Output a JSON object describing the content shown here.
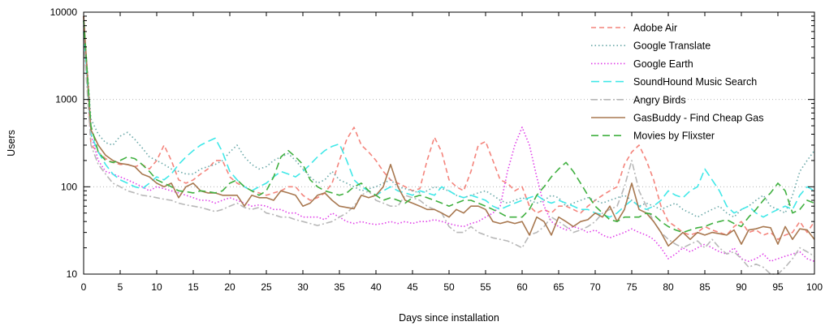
{
  "chart_data": {
    "type": "line",
    "title": "",
    "xlabel": "Days since installation",
    "ylabel": "Users",
    "xlim": [
      0,
      100
    ],
    "ylim": [
      10,
      10000
    ],
    "yscale": "log",
    "x_ticks": [
      0,
      5,
      10,
      15,
      20,
      25,
      30,
      35,
      40,
      45,
      50,
      55,
      60,
      65,
      70,
      75,
      80,
      85,
      90,
      95,
      100
    ],
    "y_ticks": [
      10,
      100,
      1000,
      10000
    ],
    "y_tick_labels": [
      "10",
      "100",
      "1000",
      "10000"
    ],
    "grid": "horizontal dotted at major y ticks",
    "legend_position": "top-right",
    "x": [
      0,
      1,
      2,
      3,
      4,
      5,
      6,
      7,
      8,
      9,
      10,
      11,
      12,
      13,
      14,
      15,
      16,
      17,
      18,
      19,
      20,
      21,
      22,
      23,
      24,
      25,
      26,
      27,
      28,
      29,
      30,
      31,
      32,
      33,
      34,
      35,
      36,
      37,
      38,
      39,
      40,
      41,
      42,
      43,
      44,
      45,
      46,
      47,
      48,
      49,
      50,
      51,
      52,
      53,
      54,
      55,
      56,
      57,
      58,
      59,
      60,
      61,
      62,
      63,
      64,
      65,
      66,
      67,
      68,
      69,
      70,
      71,
      72,
      73,
      74,
      75,
      76,
      77,
      78,
      79,
      80,
      81,
      82,
      83,
      84,
      85,
      86,
      87,
      88,
      89,
      90,
      91,
      92,
      93,
      94,
      95,
      96,
      97,
      98,
      99,
      100
    ],
    "series": [
      {
        "name": "Adobe Air",
        "color": "#f4847c",
        "dash": "6,4",
        "values": [
          9000,
          300,
          250,
          210,
          190,
          180,
          180,
          170,
          180,
          160,
          200,
          300,
          200,
          120,
          110,
          120,
          140,
          160,
          200,
          200,
          130,
          110,
          100,
          90,
          85,
          80,
          85,
          90,
          100,
          100,
          80,
          70,
          75,
          85,
          110,
          200,
          350,
          480,
          300,
          250,
          200,
          150,
          120,
          110,
          100,
          90,
          95,
          200,
          370,
          250,
          120,
          100,
          90,
          150,
          300,
          330,
          200,
          120,
          110,
          90,
          100,
          60,
          50,
          55,
          50,
          60,
          60,
          55,
          50,
          60,
          70,
          80,
          90,
          100,
          180,
          250,
          300,
          200,
          120,
          60,
          40,
          35,
          30,
          28,
          30,
          35,
          32,
          30,
          28,
          35,
          40,
          30,
          32,
          28,
          30,
          25,
          28,
          30,
          40,
          30,
          40
        ]
      },
      {
        "name": "Google Translate",
        "color": "#6aa8a8",
        "dash": "1.5,3",
        "values": [
          8000,
          600,
          400,
          320,
          300,
          380,
          420,
          350,
          280,
          220,
          200,
          180,
          160,
          150,
          140,
          140,
          160,
          170,
          180,
          200,
          250,
          300,
          220,
          180,
          160,
          170,
          200,
          220,
          240,
          200,
          160,
          130,
          110,
          120,
          150,
          120,
          110,
          100,
          90,
          95,
          100,
          110,
          120,
          100,
          95,
          90,
          85,
          90,
          100,
          95,
          90,
          80,
          75,
          80,
          85,
          90,
          80,
          70,
          65,
          70,
          75,
          70,
          65,
          70,
          80,
          75,
          60,
          65,
          70,
          75,
          70,
          65,
          70,
          75,
          80,
          70,
          60,
          65,
          60,
          55,
          60,
          65,
          55,
          50,
          45,
          50,
          55,
          60,
          50,
          45,
          55,
          60,
          70,
          80,
          60,
          55,
          50,
          80,
          150,
          200,
          260
        ]
      },
      {
        "name": "Google Earth",
        "color": "#e040e8",
        "dash": "1.5,2.5",
        "values": [
          7000,
          400,
          200,
          150,
          140,
          130,
          120,
          110,
          100,
          90,
          100,
          95,
          90,
          85,
          80,
          75,
          70,
          70,
          65,
          70,
          75,
          70,
          65,
          60,
          62,
          60,
          55,
          55,
          50,
          50,
          45,
          45,
          45,
          42,
          50,
          45,
          40,
          38,
          40,
          38,
          37,
          38,
          40,
          38,
          40,
          38,
          40,
          40,
          42,
          40,
          38,
          36,
          35,
          38,
          40,
          45,
          50,
          60,
          150,
          300,
          480,
          300,
          130,
          60,
          40,
          35,
          32,
          35,
          33,
          30,
          32,
          28,
          26,
          28,
          30,
          33,
          30,
          28,
          25,
          20,
          15,
          17,
          20,
          18,
          20,
          22,
          20,
          18,
          17,
          20,
          15,
          14,
          15,
          17,
          14,
          15,
          16,
          17,
          18,
          15,
          14
        ]
      },
      {
        "name": "SoundHound Music Search",
        "color": "#40e8e8",
        "dash": "10,5",
        "values": [
          6000,
          400,
          250,
          180,
          140,
          120,
          110,
          100,
          95,
          110,
          130,
          120,
          140,
          180,
          220,
          260,
          300,
          330,
          360,
          250,
          150,
          120,
          100,
          90,
          100,
          110,
          130,
          150,
          140,
          130,
          150,
          180,
          220,
          260,
          290,
          310,
          200,
          120,
          100,
          90,
          80,
          90,
          100,
          90,
          85,
          80,
          90,
          85,
          80,
          100,
          90,
          80,
          75,
          80,
          75,
          70,
          60,
          55,
          60,
          65,
          70,
          75,
          80,
          70,
          65,
          70,
          65,
          60,
          55,
          55,
          50,
          48,
          45,
          50,
          60,
          70,
          60,
          55,
          60,
          70,
          90,
          80,
          75,
          90,
          100,
          160,
          120,
          90,
          60,
          50,
          55,
          60,
          50,
          45,
          50,
          55,
          60,
          55,
          80,
          100,
          90
        ]
      },
      {
        "name": "Angry Birds",
        "color": "#b8b8b8",
        "dash": "8,3,2,3",
        "values": [
          5000,
          300,
          180,
          140,
          110,
          100,
          90,
          85,
          80,
          78,
          75,
          72,
          70,
          65,
          62,
          60,
          58,
          55,
          52,
          55,
          60,
          65,
          58,
          55,
          58,
          50,
          48,
          45,
          45,
          42,
          40,
          38,
          36,
          38,
          40,
          45,
          50,
          60,
          80,
          90,
          70,
          65,
          60,
          60,
          80,
          75,
          70,
          60,
          55,
          50,
          35,
          30,
          30,
          35,
          30,
          28,
          26,
          25,
          24,
          22,
          20,
          28,
          30,
          35,
          45,
          40,
          35,
          30,
          32,
          35,
          40,
          50,
          55,
          60,
          100,
          200,
          90,
          60,
          40,
          30,
          25,
          22,
          20,
          22,
          24,
          20,
          25,
          20,
          17,
          18,
          15,
          12,
          13,
          12,
          10,
          10,
          12,
          15,
          20,
          18,
          16
        ]
      },
      {
        "name": "GasBuddy - Find Cheap Gas",
        "color": "#a87850",
        "dash": "",
        "values": [
          9000,
          450,
          300,
          230,
          200,
          185,
          180,
          170,
          140,
          130,
          110,
          100,
          110,
          75,
          100,
          110,
          90,
          85,
          85,
          80,
          80,
          80,
          60,
          80,
          75,
          75,
          70,
          90,
          85,
          80,
          60,
          65,
          80,
          85,
          70,
          60,
          58,
          56,
          80,
          75,
          80,
          100,
          180,
          100,
          70,
          65,
          60,
          55,
          55,
          50,
          45,
          55,
          50,
          60,
          60,
          55,
          40,
          38,
          40,
          38,
          40,
          28,
          45,
          40,
          28,
          45,
          40,
          35,
          40,
          42,
          50,
          45,
          60,
          40,
          55,
          110,
          55,
          50,
          40,
          30,
          21,
          25,
          30,
          25,
          30,
          28,
          30,
          29,
          28,
          32,
          22,
          32,
          33,
          35,
          34,
          22,
          35,
          25,
          33,
          32,
          25
        ]
      },
      {
        "name": "Movies by Flixster",
        "color": "#40b040",
        "dash": "9,5",
        "values": [
          8000,
          500,
          250,
          200,
          190,
          200,
          220,
          210,
          180,
          150,
          120,
          110,
          100,
          90,
          88,
          85,
          90,
          88,
          85,
          90,
          110,
          120,
          100,
          90,
          80,
          90,
          130,
          220,
          260,
          220,
          180,
          120,
          100,
          90,
          85,
          80,
          85,
          100,
          110,
          90,
          80,
          70,
          75,
          70,
          65,
          75,
          80,
          75,
          70,
          65,
          60,
          65,
          70,
          70,
          65,
          60,
          55,
          50,
          45,
          45,
          45,
          55,
          80,
          100,
          130,
          160,
          190,
          150,
          110,
          80,
          60,
          50,
          42,
          40,
          45,
          45,
          45,
          50,
          48,
          40,
          35,
          32,
          30,
          32,
          34,
          35,
          38,
          40,
          42,
          38,
          35,
          45,
          55,
          70,
          85,
          110,
          90,
          50,
          55,
          70,
          65
        ]
      }
    ]
  }
}
